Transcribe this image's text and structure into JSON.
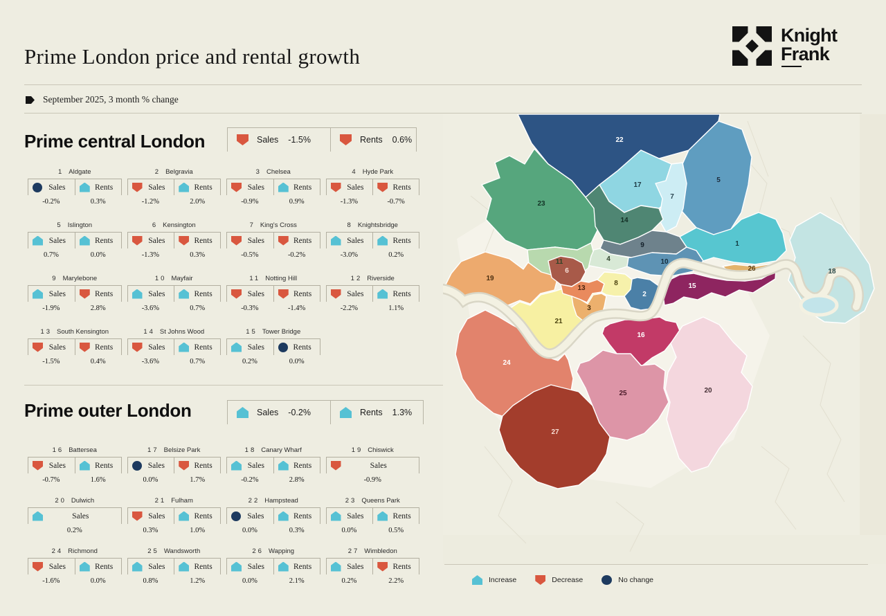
{
  "header": {
    "title": "Prime London price and rental growth",
    "subtitle": "September 2025, 3 month % change",
    "logo_line1": "Knight",
    "logo_line2": "Frank"
  },
  "central": {
    "title": "Prime central London",
    "summary": [
      {
        "label": "Sales",
        "dir": "down",
        "value": "-1.5%"
      },
      {
        "label": "Rents",
        "dir": "down",
        "value": "0.6%"
      }
    ],
    "areas": [
      {
        "num": "1",
        "name": "Aldgate",
        "metrics": [
          {
            "label": "Sales",
            "dir": "none",
            "value": "-0.2%"
          },
          {
            "label": "Rents",
            "dir": "up",
            "value": "0.3%"
          }
        ]
      },
      {
        "num": "2",
        "name": "Belgravia",
        "metrics": [
          {
            "label": "Sales",
            "dir": "down",
            "value": "-1.2%"
          },
          {
            "label": "Rents",
            "dir": "up",
            "value": "2.0%"
          }
        ]
      },
      {
        "num": "3",
        "name": "Chelsea",
        "metrics": [
          {
            "label": "Sales",
            "dir": "down",
            "value": "-0.9%"
          },
          {
            "label": "Rents",
            "dir": "up",
            "value": "0.9%"
          }
        ]
      },
      {
        "num": "4",
        "name": "Hyde Park",
        "metrics": [
          {
            "label": "Sales",
            "dir": "down",
            "value": "-1.3%"
          },
          {
            "label": "Rents",
            "dir": "down",
            "value": "-0.7%"
          }
        ]
      },
      {
        "num": "5",
        "name": "Islington",
        "metrics": [
          {
            "label": "Sales",
            "dir": "up",
            "value": "0.7%"
          },
          {
            "label": "Rents",
            "dir": "up",
            "value": "0.0%"
          }
        ]
      },
      {
        "num": "6",
        "name": "Kensington",
        "metrics": [
          {
            "label": "Sales",
            "dir": "down",
            "value": "-1.3%"
          },
          {
            "label": "Rents",
            "dir": "down",
            "value": "0.3%"
          }
        ]
      },
      {
        "num": "7",
        "name": "King's Cross",
        "metrics": [
          {
            "label": "Sales",
            "dir": "down",
            "value": "-0.5%"
          },
          {
            "label": "Rents",
            "dir": "down",
            "value": "-0.2%"
          }
        ]
      },
      {
        "num": "8",
        "name": "Knightsbridge",
        "metrics": [
          {
            "label": "Sales",
            "dir": "up",
            "value": "-3.0%"
          },
          {
            "label": "Rents",
            "dir": "up",
            "value": "0.2%"
          }
        ]
      },
      {
        "num": "9",
        "name": "Marylebone",
        "metrics": [
          {
            "label": "Sales",
            "dir": "up",
            "value": "-1.9%"
          },
          {
            "label": "Rents",
            "dir": "down",
            "value": "2.8%"
          }
        ]
      },
      {
        "num": "10",
        "name": "Mayfair",
        "metrics": [
          {
            "label": "Sales",
            "dir": "up",
            "value": "-3.6%"
          },
          {
            "label": "Rents",
            "dir": "up",
            "value": "0.7%"
          }
        ]
      },
      {
        "num": "11",
        "name": "Notting Hill",
        "metrics": [
          {
            "label": "Sales",
            "dir": "down",
            "value": "-0.3%"
          },
          {
            "label": "Rents",
            "dir": "down",
            "value": "-1.4%"
          }
        ]
      },
      {
        "num": "12",
        "name": "Riverside",
        "metrics": [
          {
            "label": "Sales",
            "dir": "down",
            "value": "-2.2%"
          },
          {
            "label": "Rents",
            "dir": "up",
            "value": "1.1%"
          }
        ]
      },
      {
        "num": "13",
        "name": "South Kensington",
        "metrics": [
          {
            "label": "Sales",
            "dir": "down",
            "value": "-1.5%"
          },
          {
            "label": "Rents",
            "dir": "down",
            "value": "0.4%"
          }
        ]
      },
      {
        "num": "14",
        "name": "St Johns Wood",
        "metrics": [
          {
            "label": "Sales",
            "dir": "down",
            "value": "-3.6%"
          },
          {
            "label": "Rents",
            "dir": "up",
            "value": "0.7%"
          }
        ]
      },
      {
        "num": "15",
        "name": "Tower Bridge",
        "metrics": [
          {
            "label": "Sales",
            "dir": "up",
            "value": "0.2%"
          },
          {
            "label": "Rents",
            "dir": "none",
            "value": "0.0%"
          }
        ]
      }
    ]
  },
  "outer": {
    "title": "Prime outer London",
    "summary": [
      {
        "label": "Sales",
        "dir": "up",
        "value": "-0.2%"
      },
      {
        "label": "Rents",
        "dir": "up",
        "value": "1.3%"
      }
    ],
    "areas": [
      {
        "num": "16",
        "name": "Battersea",
        "metrics": [
          {
            "label": "Sales",
            "dir": "down",
            "value": "-0.7%"
          },
          {
            "label": "Rents",
            "dir": "up",
            "value": "1.6%"
          }
        ]
      },
      {
        "num": "17",
        "name": "Belsize Park",
        "metrics": [
          {
            "label": "Sales",
            "dir": "none",
            "value": "0.0%"
          },
          {
            "label": "Rents",
            "dir": "down",
            "value": "1.7%"
          }
        ]
      },
      {
        "num": "18",
        "name": "Canary Wharf",
        "metrics": [
          {
            "label": "Sales",
            "dir": "up",
            "value": "-0.2%"
          },
          {
            "label": "Rents",
            "dir": "up",
            "value": "2.8%"
          }
        ]
      },
      {
        "num": "19",
        "name": "Chiswick",
        "metrics": [
          {
            "label": "Sales",
            "dir": "down",
            "value": "-0.9%"
          }
        ]
      },
      {
        "num": "20",
        "name": "Dulwich",
        "metrics": [
          {
            "label": "Sales",
            "dir": "up",
            "value": "0.2%"
          }
        ]
      },
      {
        "num": "21",
        "name": "Fulham",
        "metrics": [
          {
            "label": "Sales",
            "dir": "down",
            "value": "0.3%"
          },
          {
            "label": "Rents",
            "dir": "up",
            "value": "1.0%"
          }
        ]
      },
      {
        "num": "22",
        "name": "Hampstead",
        "metrics": [
          {
            "label": "Sales",
            "dir": "none",
            "value": "0.0%"
          },
          {
            "label": "Rents",
            "dir": "up",
            "value": "0.3%"
          }
        ]
      },
      {
        "num": "23",
        "name": "Queens Park",
        "metrics": [
          {
            "label": "Sales",
            "dir": "up",
            "value": "0.0%"
          },
          {
            "label": "Rents",
            "dir": "up",
            "value": "0.5%"
          }
        ]
      },
      {
        "num": "24",
        "name": "Richmond",
        "metrics": [
          {
            "label": "Sales",
            "dir": "down",
            "value": "-1.6%"
          },
          {
            "label": "Rents",
            "dir": "up",
            "value": "0.0%"
          }
        ]
      },
      {
        "num": "25",
        "name": "Wandsworth",
        "metrics": [
          {
            "label": "Sales",
            "dir": "up",
            "value": "0.8%"
          },
          {
            "label": "Rents",
            "dir": "up",
            "value": "1.2%"
          }
        ]
      },
      {
        "num": "26",
        "name": "Wapping",
        "metrics": [
          {
            "label": "Sales",
            "dir": "up",
            "value": "0.0%"
          },
          {
            "label": "Rents",
            "dir": "up",
            "value": "2.1%"
          }
        ]
      },
      {
        "num": "27",
        "name": "Wimbledon",
        "metrics": [
          {
            "label": "Sales",
            "dir": "up",
            "value": "0.2%"
          },
          {
            "label": "Rents",
            "dir": "down",
            "value": "2.2%"
          }
        ]
      }
    ]
  },
  "legend": {
    "items": [
      {
        "label": "Increase",
        "dir": "up"
      },
      {
        "label": "Decrease",
        "dir": "down"
      },
      {
        "label": "No change",
        "dir": "none"
      }
    ]
  },
  "colors": {
    "background": "#eeede1",
    "increase": "#56c1d4",
    "decrease": "#d9573f",
    "no_change": "#1d3a5f"
  },
  "map": {
    "regions": [
      {
        "num": "22",
        "color": "#2d5484",
        "label_color": "#ffffff"
      },
      {
        "num": "5",
        "color": "#5f9dc0",
        "label_color": "#1e2c3c"
      },
      {
        "num": "23",
        "color": "#56a67d",
        "label_color": "#143426"
      },
      {
        "num": "17",
        "color": "#8fd6e2",
        "label_color": "#1e3a44"
      },
      {
        "num": "7",
        "color": "#cdedf4",
        "label_color": "#2a4550"
      },
      {
        "num": "14",
        "color": "#4f8673",
        "label_color": "#122e24"
      },
      {
        "num": "9",
        "color": "#6e828c",
        "label_color": "#14202a"
      },
      {
        "num": "11",
        "color": "#b8d9ae",
        "label_color": "#2b4326"
      },
      {
        "num": "4",
        "color": "#d8e9d6",
        "label_color": "#32452f"
      },
      {
        "num": "10",
        "color": "#5e93b4",
        "label_color": "#142c3c"
      },
      {
        "num": "1",
        "color": "#57c6d0",
        "label_color": "#123a40"
      },
      {
        "num": "19",
        "color": "#edaa6e",
        "label_color": "#4c2f10"
      },
      {
        "num": "24",
        "color": "#e2836c",
        "label_color": "#ffffff"
      },
      {
        "num": "21",
        "color": "#f7f0a2",
        "label_color": "#4c4410"
      },
      {
        "num": "18",
        "color": "#c3e4e3",
        "label_color": "#2a4848"
      },
      {
        "num": "26",
        "color": "#e3b36b",
        "label_color": "#5d3e12"
      },
      {
        "num": "15",
        "color": "#8e2560",
        "label_color": "#ffffff"
      },
      {
        "num": "2",
        "color": "#4b80a7",
        "label_color": "#ffffff"
      },
      {
        "num": "16",
        "color": "#c23a67",
        "label_color": "#ffffff"
      },
      {
        "num": "25",
        "color": "#dd95a7",
        "label_color": "#4a1a28"
      },
      {
        "num": "27",
        "color": "#a33d2c",
        "label_color": "#f7ddd3"
      },
      {
        "num": "20",
        "color": "#f4d7de",
        "label_color": "#463036"
      },
      {
        "num": "6",
        "color": "#a85a49",
        "label_color": "#f6ded6"
      },
      {
        "num": "13",
        "color": "#e98a5d",
        "label_color": "#4c2410"
      },
      {
        "num": "8",
        "color": "#f6f1ab",
        "label_color": "#4c4410"
      },
      {
        "num": "3",
        "color": "#ecb06d",
        "label_color": "#4c3010"
      }
    ]
  },
  "chart_data": {
    "type": "table",
    "title": "Prime London price and rental growth",
    "subtitle": "September 2025, 3 month % change",
    "legend": [
      "Increase",
      "Decrease",
      "No change"
    ],
    "groups": [
      {
        "name": "Prime central London",
        "summary": {
          "sales_pct": -1.5,
          "sales_dir": "decrease",
          "rents_pct": 0.6,
          "rents_dir": "decrease"
        },
        "columns": [
          "number",
          "area",
          "sales_pct",
          "sales_dir",
          "rents_pct",
          "rents_dir"
        ],
        "rows": [
          [
            1,
            "Aldgate",
            -0.2,
            "no change",
            0.3,
            "increase"
          ],
          [
            2,
            "Belgravia",
            -1.2,
            "decrease",
            2.0,
            "increase"
          ],
          [
            3,
            "Chelsea",
            -0.9,
            "decrease",
            0.9,
            "increase"
          ],
          [
            4,
            "Hyde Park",
            -1.3,
            "decrease",
            -0.7,
            "decrease"
          ],
          [
            5,
            "Islington",
            0.7,
            "increase",
            0.0,
            "increase"
          ],
          [
            6,
            "Kensington",
            -1.3,
            "decrease",
            0.3,
            "decrease"
          ],
          [
            7,
            "King's Cross",
            -0.5,
            "decrease",
            -0.2,
            "decrease"
          ],
          [
            8,
            "Knightsbridge",
            -3.0,
            "increase",
            0.2,
            "increase"
          ],
          [
            9,
            "Marylebone",
            -1.9,
            "increase",
            2.8,
            "decrease"
          ],
          [
            10,
            "Mayfair",
            -3.6,
            "increase",
            0.7,
            "increase"
          ],
          [
            11,
            "Notting Hill",
            -0.3,
            "decrease",
            -1.4,
            "decrease"
          ],
          [
            12,
            "Riverside",
            -2.2,
            "decrease",
            1.1,
            "increase"
          ],
          [
            13,
            "South Kensington",
            -1.5,
            "decrease",
            0.4,
            "decrease"
          ],
          [
            14,
            "St Johns Wood",
            -3.6,
            "decrease",
            0.7,
            "increase"
          ],
          [
            15,
            "Tower Bridge",
            0.2,
            "increase",
            0.0,
            "no change"
          ]
        ]
      },
      {
        "name": "Prime outer London",
        "summary": {
          "sales_pct": -0.2,
          "sales_dir": "increase",
          "rents_pct": 1.3,
          "rents_dir": "increase"
        },
        "columns": [
          "number",
          "area",
          "sales_pct",
          "sales_dir",
          "rents_pct",
          "rents_dir"
        ],
        "rows": [
          [
            16,
            "Battersea",
            -0.7,
            "decrease",
            1.6,
            "increase"
          ],
          [
            17,
            "Belsize Park",
            0.0,
            "no change",
            1.7,
            "decrease"
          ],
          [
            18,
            "Canary Wharf",
            -0.2,
            "increase",
            2.8,
            "increase"
          ],
          [
            19,
            "Chiswick",
            -0.9,
            "decrease",
            null,
            null
          ],
          [
            20,
            "Dulwich",
            0.2,
            "increase",
            null,
            null
          ],
          [
            21,
            "Fulham",
            0.3,
            "decrease",
            1.0,
            "increase"
          ],
          [
            22,
            "Hampstead",
            0.0,
            "no change",
            0.3,
            "increase"
          ],
          [
            23,
            "Queens Park",
            0.0,
            "increase",
            0.5,
            "increase"
          ],
          [
            24,
            "Richmond",
            -1.6,
            "decrease",
            0.0,
            "increase"
          ],
          [
            25,
            "Wandsworth",
            0.8,
            "increase",
            1.2,
            "increase"
          ],
          [
            26,
            "Wapping",
            0.0,
            "increase",
            2.1,
            "increase"
          ],
          [
            27,
            "Wimbledon",
            0.2,
            "increase",
            2.2,
            "decrease"
          ]
        ]
      }
    ]
  }
}
